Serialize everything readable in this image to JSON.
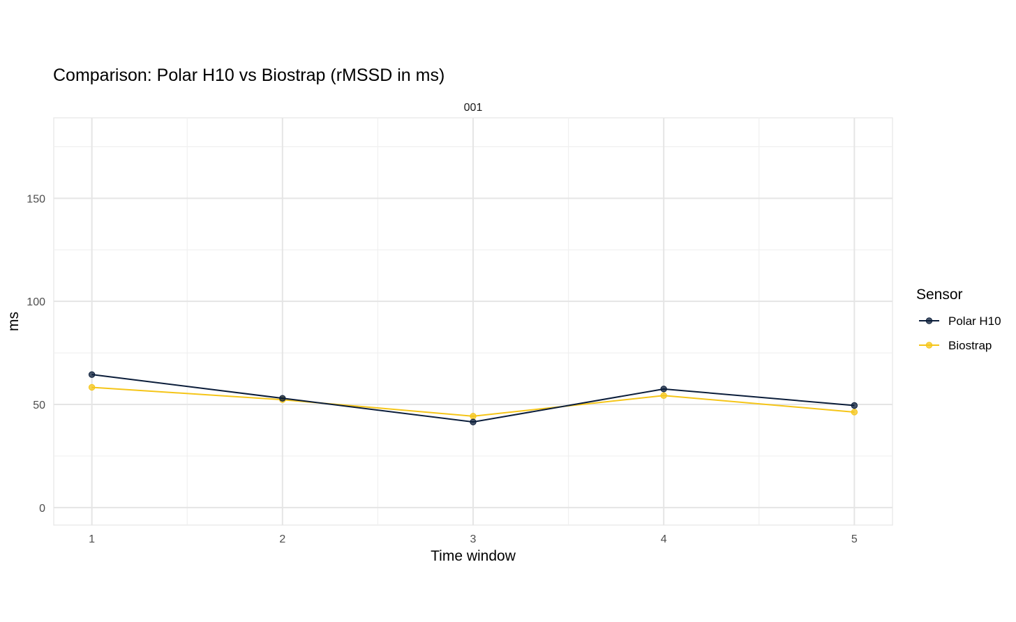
{
  "chart_data": {
    "type": "line",
    "title": "Comparison: Polar H10 vs Biostrap (rMSSD in ms)",
    "panel_label": "001",
    "xlabel": "Time window",
    "ylabel": "ms",
    "x": [
      1,
      2,
      3,
      4,
      5
    ],
    "xlim": [
      0.8,
      5.2
    ],
    "ylim": [
      -8.5,
      189
    ],
    "y_ticks": [
      0,
      50,
      100,
      150
    ],
    "grid": true,
    "legend": {
      "title": "Sensor",
      "placement": "right"
    },
    "series": [
      {
        "name": "Polar H10",
        "color": "#0b1d3a",
        "values": [
          64.5,
          53,
          41.5,
          57.5,
          49.5
        ]
      },
      {
        "name": "Biostrap",
        "color": "#f5c518",
        "values": [
          58.3,
          52.3,
          44.3,
          54.3,
          46.3
        ]
      }
    ]
  }
}
